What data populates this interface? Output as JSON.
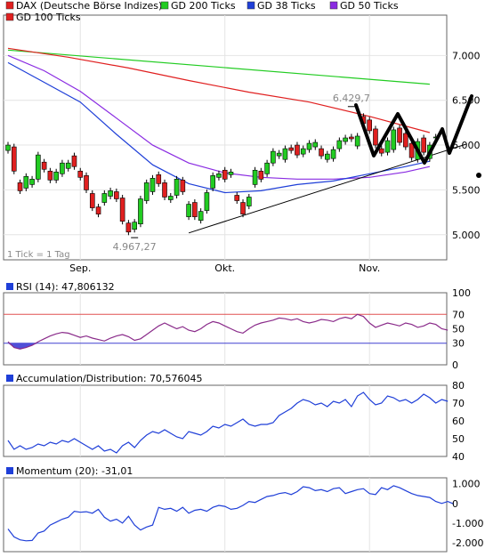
{
  "chart_data": [
    {
      "type": "candlestick",
      "panel": "price",
      "legend": [
        {
          "label": "DAX (Deutsche Börse Indizes)",
          "color": "#e02020"
        },
        {
          "label": "GD 200 Ticks",
          "color": "#22cc22"
        },
        {
          "label": "GD 38 Ticks",
          "color": "#1f3fd8"
        },
        {
          "label": "GD 50 Ticks",
          "color": "#8a2be2"
        },
        {
          "label": "GD 100 Ticks",
          "color": "#e02020"
        }
      ],
      "y_ticks": [
        "5.000",
        "5.500",
        "6.000",
        "6.500",
        "7.000"
      ],
      "y_tick_values": [
        5000,
        5500,
        6000,
        6500,
        7000
      ],
      "ylim": [
        4720,
        7450
      ],
      "x_tick_labels": [
        "Sep.",
        "Okt.",
        "Nov."
      ],
      "x_tick_index": [
        12,
        36,
        60
      ],
      "tick_note": "1 Tick = 1 Tag",
      "annotations": [
        {
          "text": "4.967,27",
          "index": 21,
          "value": 4967.27
        },
        {
          "text": "6.429,7",
          "index": 57,
          "value": 6429.7
        }
      ],
      "candles": [
        {
          "o": 5940,
          "c": 6000
        },
        {
          "o": 5980,
          "c": 5710
        },
        {
          "o": 5580,
          "c": 5490
        },
        {
          "o": 5520,
          "c": 5650
        },
        {
          "o": 5560,
          "c": 5620
        },
        {
          "o": 5620,
          "c": 5890
        },
        {
          "o": 5810,
          "c": 5730
        },
        {
          "o": 5710,
          "c": 5610
        },
        {
          "o": 5610,
          "c": 5700
        },
        {
          "o": 5680,
          "c": 5800
        },
        {
          "o": 5740,
          "c": 5800
        },
        {
          "o": 5880,
          "c": 5760
        },
        {
          "o": 5710,
          "c": 5640
        },
        {
          "o": 5660,
          "c": 5500
        },
        {
          "o": 5460,
          "c": 5300
        },
        {
          "o": 5310,
          "c": 5230
        },
        {
          "o": 5360,
          "c": 5460
        },
        {
          "o": 5430,
          "c": 5490
        },
        {
          "o": 5480,
          "c": 5400
        },
        {
          "o": 5410,
          "c": 5150
        },
        {
          "o": 5130,
          "c": 5030
        },
        {
          "o": 5060,
          "c": 5140
        },
        {
          "o": 5120,
          "c": 5400
        },
        {
          "o": 5380,
          "c": 5580
        },
        {
          "o": 5480,
          "c": 5630
        },
        {
          "o": 5670,
          "c": 5570
        },
        {
          "o": 5580,
          "c": 5420
        },
        {
          "o": 5390,
          "c": 5430
        },
        {
          "o": 5440,
          "c": 5620
        },
        {
          "o": 5610,
          "c": 5480
        },
        {
          "o": 5200,
          "c": 5340
        },
        {
          "o": 5360,
          "c": 5200
        },
        {
          "o": 5160,
          "c": 5260
        },
        {
          "o": 5270,
          "c": 5470
        },
        {
          "o": 5520,
          "c": 5660
        },
        {
          "o": 5640,
          "c": 5680
        },
        {
          "o": 5720,
          "c": 5620
        },
        {
          "o": 5670,
          "c": 5700
        },
        {
          "o": 5440,
          "c": 5380
        },
        {
          "o": 5360,
          "c": 5230
        },
        {
          "o": 5320,
          "c": 5420
        },
        {
          "o": 5560,
          "c": 5720
        },
        {
          "o": 5710,
          "c": 5620
        },
        {
          "o": 5680,
          "c": 5800
        },
        {
          "o": 5800,
          "c": 5930
        },
        {
          "o": 5880,
          "c": 5910
        },
        {
          "o": 5840,
          "c": 5960
        },
        {
          "o": 5970,
          "c": 5940
        },
        {
          "o": 6000,
          "c": 5890
        },
        {
          "o": 5900,
          "c": 5960
        },
        {
          "o": 5950,
          "c": 6020
        },
        {
          "o": 5980,
          "c": 6030
        },
        {
          "o": 5960,
          "c": 5880
        },
        {
          "o": 5840,
          "c": 5900
        },
        {
          "o": 5850,
          "c": 5950
        },
        {
          "o": 5960,
          "c": 6050
        },
        {
          "o": 6040,
          "c": 6080
        },
        {
          "o": 6090,
          "c": 6070
        },
        {
          "o": 5990,
          "c": 6100
        },
        {
          "o": 6320,
          "c": 6240
        },
        {
          "o": 6280,
          "c": 6160
        },
        {
          "o": 6180,
          "c": 6000
        },
        {
          "o": 5960,
          "c": 5910
        },
        {
          "o": 5920,
          "c": 6050
        },
        {
          "o": 5950,
          "c": 6170
        },
        {
          "o": 6190,
          "c": 6030
        },
        {
          "o": 6130,
          "c": 5980
        },
        {
          "o": 6020,
          "c": 5860
        },
        {
          "o": 5840,
          "c": 6040
        },
        {
          "o": 6080,
          "c": 5920
        },
        {
          "o": 5850,
          "c": 6000
        },
        {
          "o": 6080,
          "c": 6090
        }
      ],
      "lines": {
        "gd200": [
          [
            0,
            7060
          ],
          [
            70,
            6680
          ]
        ],
        "gd100": [
          [
            0,
            7080
          ],
          [
            10,
            6980
          ],
          [
            20,
            6860
          ],
          [
            30,
            6720
          ],
          [
            40,
            6590
          ],
          [
            50,
            6480
          ],
          [
            60,
            6320
          ],
          [
            70,
            6140
          ]
        ],
        "gd50": [
          [
            0,
            7000
          ],
          [
            6,
            6830
          ],
          [
            12,
            6600
          ],
          [
            18,
            6300
          ],
          [
            24,
            6000
          ],
          [
            30,
            5800
          ],
          [
            36,
            5690
          ],
          [
            42,
            5640
          ],
          [
            48,
            5620
          ],
          [
            54,
            5620
          ],
          [
            60,
            5640
          ],
          [
            66,
            5700
          ],
          [
            70,
            5760
          ]
        ],
        "gd38": [
          [
            0,
            6920
          ],
          [
            6,
            6700
          ],
          [
            12,
            6480
          ],
          [
            18,
            6120
          ],
          [
            24,
            5780
          ],
          [
            30,
            5570
          ],
          [
            36,
            5470
          ],
          [
            42,
            5490
          ],
          [
            48,
            5560
          ],
          [
            54,
            5600
          ],
          [
            60,
            5680
          ],
          [
            66,
            5760
          ],
          [
            70,
            5820
          ]
        ],
        "trend": [
          [
            30,
            5020
          ],
          [
            76,
            6010
          ]
        ]
      }
    },
    {
      "type": "line",
      "panel": "rsi",
      "label": "RSI (14): 47,806132",
      "y_ticks": [
        "0",
        "30",
        "50",
        "70",
        "100"
      ],
      "y_tick_values": [
        0,
        30,
        50,
        70,
        100
      ],
      "ylim": [
        0,
        100
      ],
      "ref_lines": [
        30,
        70
      ],
      "values": [
        32,
        24,
        22,
        24,
        27,
        32,
        36,
        40,
        43,
        45,
        44,
        41,
        38,
        40,
        37,
        35,
        33,
        37,
        40,
        42,
        39,
        34,
        36,
        42,
        48,
        54,
        58,
        54,
        50,
        53,
        48,
        46,
        50,
        56,
        60,
        58,
        54,
        50,
        46,
        44,
        50,
        55,
        58,
        60,
        62,
        65,
        64,
        62,
        64,
        60,
        58,
        60,
        63,
        62,
        60,
        64,
        66,
        64,
        70,
        67,
        58,
        52,
        55,
        58,
        56,
        54,
        58,
        56,
        52,
        54,
        58,
        56,
        50,
        48
      ]
    },
    {
      "type": "line",
      "panel": "ad",
      "label": "Accumulation/Distribution: 70,576045",
      "y_ticks": [
        "40",
        "50",
        "60",
        "70",
        "80"
      ],
      "y_tick_values": [
        40,
        50,
        60,
        70,
        80
      ],
      "ylim": [
        40,
        80
      ],
      "values": [
        49,
        44,
        46,
        44,
        45,
        47,
        46,
        48,
        47,
        49,
        48,
        50,
        48,
        46,
        44,
        46,
        43,
        44,
        42,
        46,
        48,
        45,
        49,
        52,
        54,
        53,
        55,
        53,
        51,
        50,
        54,
        53,
        52,
        54,
        57,
        56,
        58,
        57,
        59,
        61,
        58,
        57,
        58,
        58,
        59,
        63,
        65,
        67,
        70,
        72,
        71,
        69,
        70,
        68,
        71,
        70,
        72,
        68,
        74,
        76,
        72,
        69,
        70,
        74,
        73,
        71,
        72,
        70,
        72,
        75,
        73,
        70,
        72,
        71
      ]
    },
    {
      "type": "line",
      "panel": "momentum",
      "label": "Momentum (20): -31,01",
      "y_ticks": [
        "-2.000",
        "-1.000",
        "0",
        "1.000"
      ],
      "y_tick_values": [
        -2000,
        -1000,
        0,
        1000
      ],
      "ylim": [
        -2450,
        1300
      ],
      "values": [
        -1300,
        -1700,
        -1850,
        -1900,
        -1880,
        -1500,
        -1400,
        -1100,
        -950,
        -800,
        -700,
        -400,
        -450,
        -420,
        -500,
        -300,
        -700,
        -900,
        -800,
        -1000,
        -650,
        -1100,
        -1350,
        -1200,
        -1100,
        -200,
        -300,
        -250,
        -400,
        -200,
        -500,
        -350,
        -300,
        -400,
        -200,
        -100,
        -150,
        -300,
        -250,
        -100,
        100,
        50,
        200,
        350,
        400,
        500,
        550,
        450,
        600,
        850,
        800,
        650,
        700,
        600,
        750,
        800,
        500,
        600,
        700,
        750,
        500,
        450,
        800,
        700,
        900,
        800,
        650,
        500,
        400,
        350,
        300,
        100,
        0,
        100,
        -31
      ]
    }
  ]
}
